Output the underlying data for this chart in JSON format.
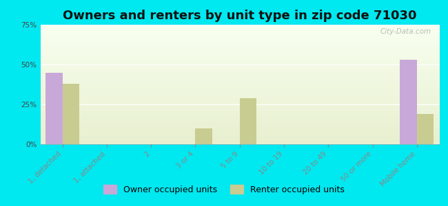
{
  "title": "Owners and renters by unit type in zip code 71030",
  "categories": [
    "1, detached",
    "1, attached",
    "2",
    "3 or 4",
    "5 to 9",
    "10 to 19",
    "20 to 49",
    "50 or more",
    "Mobile home"
  ],
  "owner_values": [
    45,
    0,
    0,
    0,
    0,
    0,
    0,
    0,
    53
  ],
  "renter_values": [
    38,
    0,
    0,
    10,
    29,
    0,
    0,
    0,
    19
  ],
  "owner_color": "#c8a8d8",
  "renter_color": "#c8cc90",
  "background_color": "#00e8f0",
  "ylim": [
    0,
    75
  ],
  "yticks": [
    0,
    25,
    50,
    75
  ],
  "bar_width": 0.38,
  "title_fontsize": 13,
  "tick_fontsize": 7.5,
  "legend_fontsize": 9,
  "watermark": "City-Data.com"
}
